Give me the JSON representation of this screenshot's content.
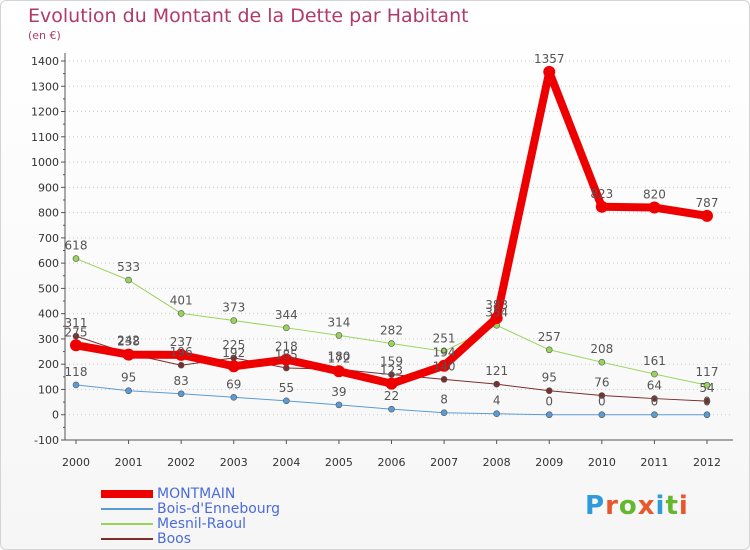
{
  "header": {
    "title": "Evolution du Montant de la Dette par Habitant",
    "subtitle": "(en €)"
  },
  "logo": {
    "text": "Proxiti",
    "colors": [
      "#2f9bd9",
      "#e8582c",
      "#64b72e",
      "#e8582c",
      "#2f9bd9",
      "#64b72e",
      "#e8582c"
    ]
  },
  "chart_data": {
    "type": "line",
    "x": [
      "2000",
      "2001",
      "2002",
      "2003",
      "2004",
      "2005",
      "2006",
      "2007",
      "2008",
      "2009",
      "2010",
      "2011",
      "2012"
    ],
    "ylim": [
      -100,
      1400
    ],
    "yticks": [
      "-100",
      "0",
      "100",
      "200",
      "300",
      "400",
      "500",
      "600",
      "700",
      "800",
      "900",
      "1000",
      "1100",
      "1200",
      "1300",
      "1400"
    ],
    "grid": "horizontal-dotted",
    "legend_position": "bottom-left",
    "series": [
      {
        "name": "MONTMAIN",
        "color": "#ee0000",
        "width": 8,
        "values": [
          275,
          238,
          237,
          192,
          218,
          172,
          123,
          194,
          383,
          1357,
          823,
          820,
          787
        ],
        "labels": [
          "275",
          "238",
          "237",
          "192",
          "218",
          "172",
          "123",
          "194",
          "383",
          "1357",
          "823",
          "820",
          "787"
        ]
      },
      {
        "name": "Bois-d'Ennebourg",
        "color": "#5b9bd5",
        "width": 1,
        "values": [
          118,
          95,
          83,
          69,
          55,
          39,
          22,
          8,
          4,
          0,
          0,
          0,
          0
        ],
        "labels": [
          "118",
          "95",
          "83",
          "69",
          "55",
          "39",
          "22",
          "8",
          "4",
          "0",
          "0",
          "0",
          "0"
        ]
      },
      {
        "name": "Mesnil-Raoul",
        "color": "#99d45a",
        "width": 1,
        "values": [
          618,
          533,
          401,
          373,
          344,
          314,
          282,
          251,
          354,
          257,
          208,
          161,
          117
        ],
        "labels": [
          "618",
          "533",
          "401",
          "373",
          "344",
          "314",
          "282",
          "251",
          "354",
          "257",
          "208",
          "161",
          "117"
        ]
      },
      {
        "name": "Boos",
        "color": "#7a2e2e",
        "width": 1,
        "values": [
          311,
          242,
          196,
          225,
          185,
          180,
          159,
          140,
          121,
          95,
          76,
          64,
          54
        ],
        "labels": [
          "311",
          "242",
          "196",
          "225",
          "185",
          "180",
          "159",
          "140",
          "121",
          "95",
          "76",
          "64",
          "54"
        ]
      }
    ]
  }
}
